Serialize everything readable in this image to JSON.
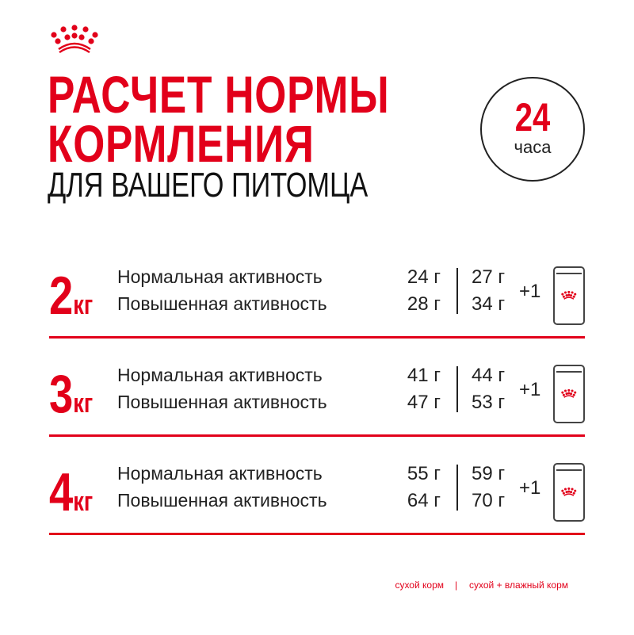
{
  "brand": {
    "logo": "crown-logo",
    "color": "#e2001a"
  },
  "header": {
    "title_line1": "РАСЧЕТ НОРМЫ",
    "title_line2": "КОРМЛЕНИЯ",
    "subtitle": "ДЛЯ ВАШЕГО ПИТОМЦА"
  },
  "badge": {
    "number": "24",
    "unit": "часа"
  },
  "rows": [
    {
      "weight": "2",
      "unit": "кг",
      "normal_label": "Нормальная активность",
      "high_label": "Повышенная активность",
      "normal_dry": "24 г",
      "normal_wet": "27 г",
      "high_dry": "28 г",
      "high_wet": "34 г",
      "plus": "+1",
      "icon": "pouch-icon"
    },
    {
      "weight": "3",
      "unit": "кг",
      "normal_label": "Нормальная активность",
      "high_label": "Повышенная активность",
      "normal_dry": "41 г",
      "normal_wet": "44 г",
      "high_dry": "47 г",
      "high_wet": "53 г",
      "plus": "+1",
      "icon": "pouch-icon"
    },
    {
      "weight": "4",
      "unit": "кг",
      "normal_label": "Нормальная активность",
      "high_label": "Повышенная активность",
      "normal_dry": "55 г",
      "normal_wet": "59 г",
      "high_dry": "64 г",
      "high_wet": "70 г",
      "plus": "+1",
      "icon": "pouch-icon"
    }
  ],
  "footer": {
    "dry": "сухой корм",
    "separator": "|",
    "mixed": "сухой + влажный корм"
  }
}
